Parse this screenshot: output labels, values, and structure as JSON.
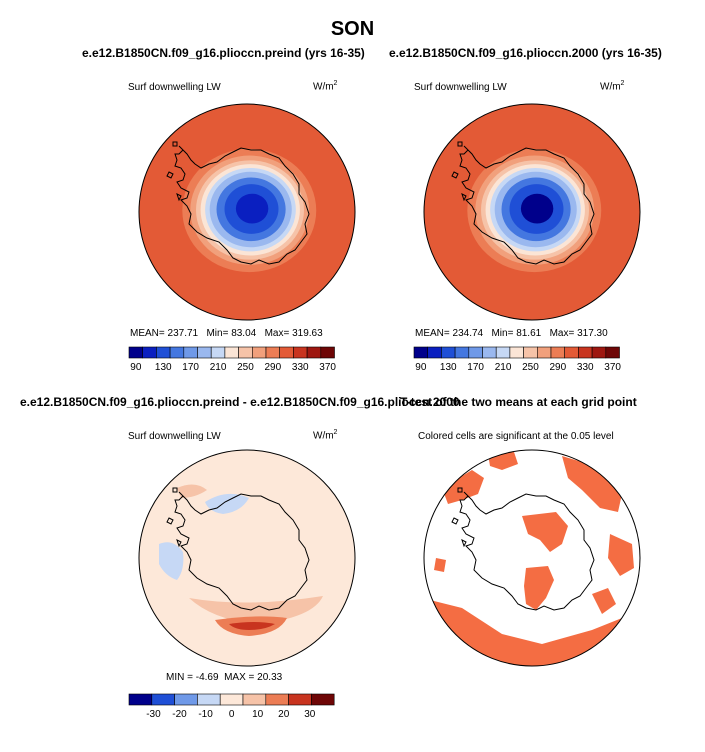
{
  "figure": {
    "title": "SON",
    "colors": {
      "abs_scale": [
        "#00008b",
        "#0a1fc0",
        "#1f4fd6",
        "#4477e0",
        "#6f99e8",
        "#9ab8ef",
        "#c6d8f5",
        "#fbe5d6",
        "#f6c3a8",
        "#f1a07c",
        "#ec7d55",
        "#e35a36",
        "#c8341f",
        "#9e1710",
        "#6e0606"
      ],
      "diff_scale": [
        "#00008b",
        "#1f4fd6",
        "#6f99e8",
        "#c6d8f5",
        "#fde8d9",
        "#f6c3a8",
        "#ec7d55",
        "#c8341f",
        "#6e0606"
      ],
      "land_outline": "#000000",
      "significance_fill": "#f46d43"
    }
  },
  "chart_data": [
    {
      "panel": "top-left",
      "type": "heatmap",
      "projection": "south-polar-stereographic",
      "title": "e.e12.B1850CN.f09_g16.plioccn.preind (yrs 16-35)",
      "subtitle": "Surf downwelling LW",
      "units_base": "W/m",
      "units_sup": "2",
      "stats": {
        "mean_label": "MEAN=",
        "mean": "237.71",
        "min_label": "Min=",
        "min": "83.04",
        "max_label": "Max=",
        "max": "319.63"
      },
      "colorbar": {
        "levels": [
          90,
          110,
          130,
          150,
          170,
          190,
          210,
          230,
          250,
          270,
          290,
          310,
          330,
          350,
          370
        ],
        "tick_labels": [
          "90",
          "130",
          "170",
          "210",
          "250",
          "290",
          "330",
          "370"
        ]
      },
      "rings": [
        {
          "value": 300,
          "radius_frac": 1.0
        },
        {
          "value": 280,
          "radius_frac": 0.62
        },
        {
          "value": 255,
          "radius_frac": 0.55
        },
        {
          "value": 240,
          "radius_frac": 0.5
        },
        {
          "value": 215,
          "radius_frac": 0.46
        },
        {
          "value": 195,
          "radius_frac": 0.42
        },
        {
          "value": 175,
          "radius_frac": 0.38
        },
        {
          "value": 150,
          "radius_frac": 0.32
        },
        {
          "value": 120,
          "radius_frac": 0.25
        },
        {
          "value": 95,
          "radius_frac": 0.15
        }
      ]
    },
    {
      "panel": "top-right",
      "type": "heatmap",
      "projection": "south-polar-stereographic",
      "title": "e.e12.B1850CN.f09_g16.plioccn.2000 (yrs 16-35)",
      "subtitle": "Surf downwelling LW",
      "units_base": "W/m",
      "units_sup": "2",
      "stats": {
        "mean_label": "MEAN=",
        "mean": "234.74",
        "min_label": "Min=",
        "min": "81.61",
        "max_label": "Max=",
        "max": "317.30"
      },
      "colorbar": {
        "levels": [
          90,
          110,
          130,
          150,
          170,
          190,
          210,
          230,
          250,
          270,
          290,
          310,
          330,
          350,
          370
        ],
        "tick_labels": [
          "90",
          "130",
          "170",
          "210",
          "250",
          "290",
          "330",
          "370"
        ]
      },
      "rings": [
        {
          "value": 300,
          "radius_frac": 1.0
        },
        {
          "value": 280,
          "radius_frac": 0.62
        },
        {
          "value": 255,
          "radius_frac": 0.55
        },
        {
          "value": 240,
          "radius_frac": 0.5
        },
        {
          "value": 215,
          "radius_frac": 0.46
        },
        {
          "value": 195,
          "radius_frac": 0.42
        },
        {
          "value": 175,
          "radius_frac": 0.38
        },
        {
          "value": 150,
          "radius_frac": 0.32
        },
        {
          "value": 120,
          "radius_frac": 0.25
        },
        {
          "value": 90,
          "radius_frac": 0.15
        }
      ]
    },
    {
      "panel": "bottom-left",
      "type": "heatmap",
      "projection": "south-polar-stereographic",
      "title": "e.e12.B1850CN.f09_g16.plioccn.preind - e.e12.B1850CN.f09_g16.plioccn.2000",
      "subtitle": "Surf downwelling LW",
      "units_base": "W/m",
      "units_sup": "2",
      "stats": {
        "min_label": "MIN =",
        "min": "-4.69",
        "max_label": "MAX =",
        "max": "20.33"
      },
      "colorbar": {
        "levels": [
          -35,
          -25,
          -15,
          -5,
          5,
          15,
          25,
          35
        ],
        "tick_labels": [
          "-30",
          "-20",
          "-10",
          "0",
          "10",
          "20",
          "30"
        ]
      }
    },
    {
      "panel": "bottom-right",
      "type": "heatmap",
      "projection": "south-polar-stereographic",
      "title": "T-test of the two means at each grid point",
      "subtitle": "Colored cells are significant at the 0.05 level"
    }
  ]
}
